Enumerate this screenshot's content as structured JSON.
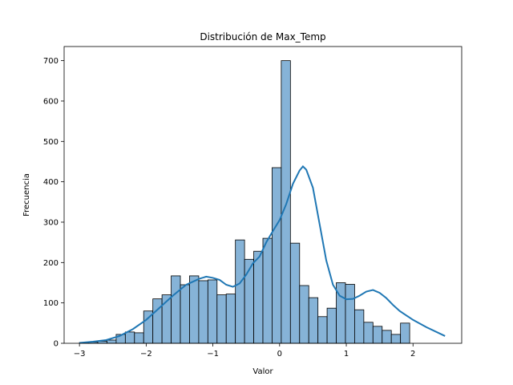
{
  "chart_data": {
    "type": "bar",
    "title": "Distribución de Max_Temp",
    "xlabel": "Valor",
    "ylabel": "Frecuencia",
    "xlim": [
      -3.23,
      2.73
    ],
    "ylim": [
      0,
      735
    ],
    "xticks": [
      -3,
      -2,
      -1,
      0,
      1,
      2
    ],
    "yticks": [
      0,
      100,
      200,
      300,
      400,
      500,
      600,
      700
    ],
    "grid": false,
    "bars": {
      "x_start": -3.0,
      "bin_width": 0.1375,
      "values": [
        2,
        3,
        5,
        8,
        22,
        28,
        26,
        80,
        110,
        120,
        167,
        145,
        167,
        155,
        157,
        120,
        122,
        256,
        208,
        228,
        260,
        435,
        700,
        248,
        143,
        113,
        66,
        87,
        150,
        146,
        83,
        52,
        42,
        32,
        22,
        50
      ],
      "fill_color": "#86b3d7",
      "edge_color": "#000000"
    },
    "kde": {
      "color": "#1f77b4",
      "x": [
        -3.0,
        -2.8,
        -2.6,
        -2.4,
        -2.2,
        -2.0,
        -1.8,
        -1.6,
        -1.4,
        -1.2,
        -1.1,
        -1.0,
        -0.9,
        -0.8,
        -0.7,
        -0.6,
        -0.5,
        -0.4,
        -0.3,
        -0.2,
        -0.1,
        0.0,
        0.1,
        0.2,
        0.3,
        0.35,
        0.4,
        0.5,
        0.6,
        0.7,
        0.8,
        0.9,
        1.0,
        1.1,
        1.2,
        1.3,
        1.4,
        1.5,
        1.6,
        1.7,
        1.8,
        2.0,
        2.2,
        2.48
      ],
      "y": [
        1,
        4,
        8,
        18,
        35,
        58,
        88,
        118,
        145,
        160,
        165,
        162,
        157,
        145,
        140,
        148,
        170,
        198,
        215,
        250,
        278,
        305,
        345,
        395,
        428,
        438,
        430,
        385,
        295,
        205,
        145,
        118,
        109,
        110,
        118,
        128,
        132,
        125,
        112,
        95,
        80,
        58,
        40,
        18
      ]
    }
  }
}
